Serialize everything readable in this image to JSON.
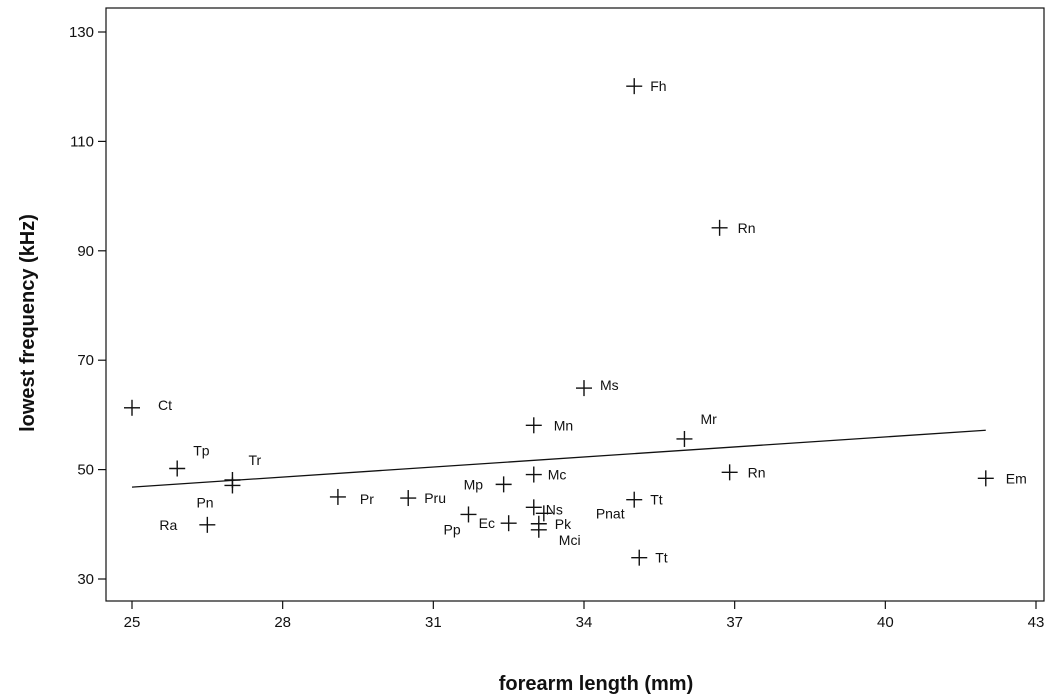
{
  "chart_data": {
    "type": "scatter",
    "xlabel": "forearm length (mm)",
    "ylabel": "lowest frequency (kHz)",
    "xlim": [
      25,
      43
    ],
    "ylim": [
      27,
      134
    ],
    "xticks": [
      25,
      28,
      31,
      34,
      37,
      40,
      43
    ],
    "yticks": [
      30,
      50,
      70,
      90,
      110,
      130
    ],
    "grid": false,
    "marker": "plus",
    "points": [
      {
        "label": "Fh",
        "x": 35.0,
        "y": 120.1
      },
      {
        "label": "Rn",
        "x": 36.7,
        "y": 94.2
      },
      {
        "label": "Ms",
        "x": 34.0,
        "y": 64.9
      },
      {
        "label": "Ct",
        "x": 25.0,
        "y": 61.3
      },
      {
        "label": "Mn",
        "x": 33.0,
        "y": 58.1
      },
      {
        "label": "Mr",
        "x": 36.0,
        "y": 55.6
      },
      {
        "label": "Tp",
        "x": 25.9,
        "y": 50.2
      },
      {
        "label": "Rn",
        "x": 36.9,
        "y": 49.5
      },
      {
        "label": "Mc",
        "x": 33.0,
        "y": 49.1
      },
      {
        "label": "Em",
        "x": 42.0,
        "y": 48.4
      },
      {
        "label": "Tr",
        "x": 27.0,
        "y": 48.1
      },
      {
        "label": "Pn",
        "x": 27.0,
        "y": 47.1
      },
      {
        "label": "Mp",
        "x": 32.4,
        "y": 47.3
      },
      {
        "label": "Pr",
        "x": 29.1,
        "y": 45.0
      },
      {
        "label": "Pru",
        "x": 30.5,
        "y": 44.8
      },
      {
        "label": "Tt",
        "x": 35.0,
        "y": 44.5
      },
      {
        "label": "Ns",
        "x": 33.0,
        "y": 43.1
      },
      {
        "label": "Pk",
        "x": 33.1,
        "y": 40.1
      },
      {
        "label": "Pnat",
        "x": 33.2,
        "y": 42.0
      },
      {
        "label": "Pp",
        "x": 31.7,
        "y": 41.8
      },
      {
        "label": "Ec",
        "x": 32.5,
        "y": 40.2
      },
      {
        "label": "Ra",
        "x": 26.5,
        "y": 39.9
      },
      {
        "label": "Mci",
        "x": 33.1,
        "y": 39.0
      },
      {
        "label": "Tt",
        "x": 35.1,
        "y": 33.9
      }
    ],
    "trendline": {
      "x": [
        25,
        42
      ],
      "y": [
        46.8,
        57.2
      ]
    }
  },
  "colors": {
    "ink": "#111111",
    "background": "#ffffff"
  }
}
